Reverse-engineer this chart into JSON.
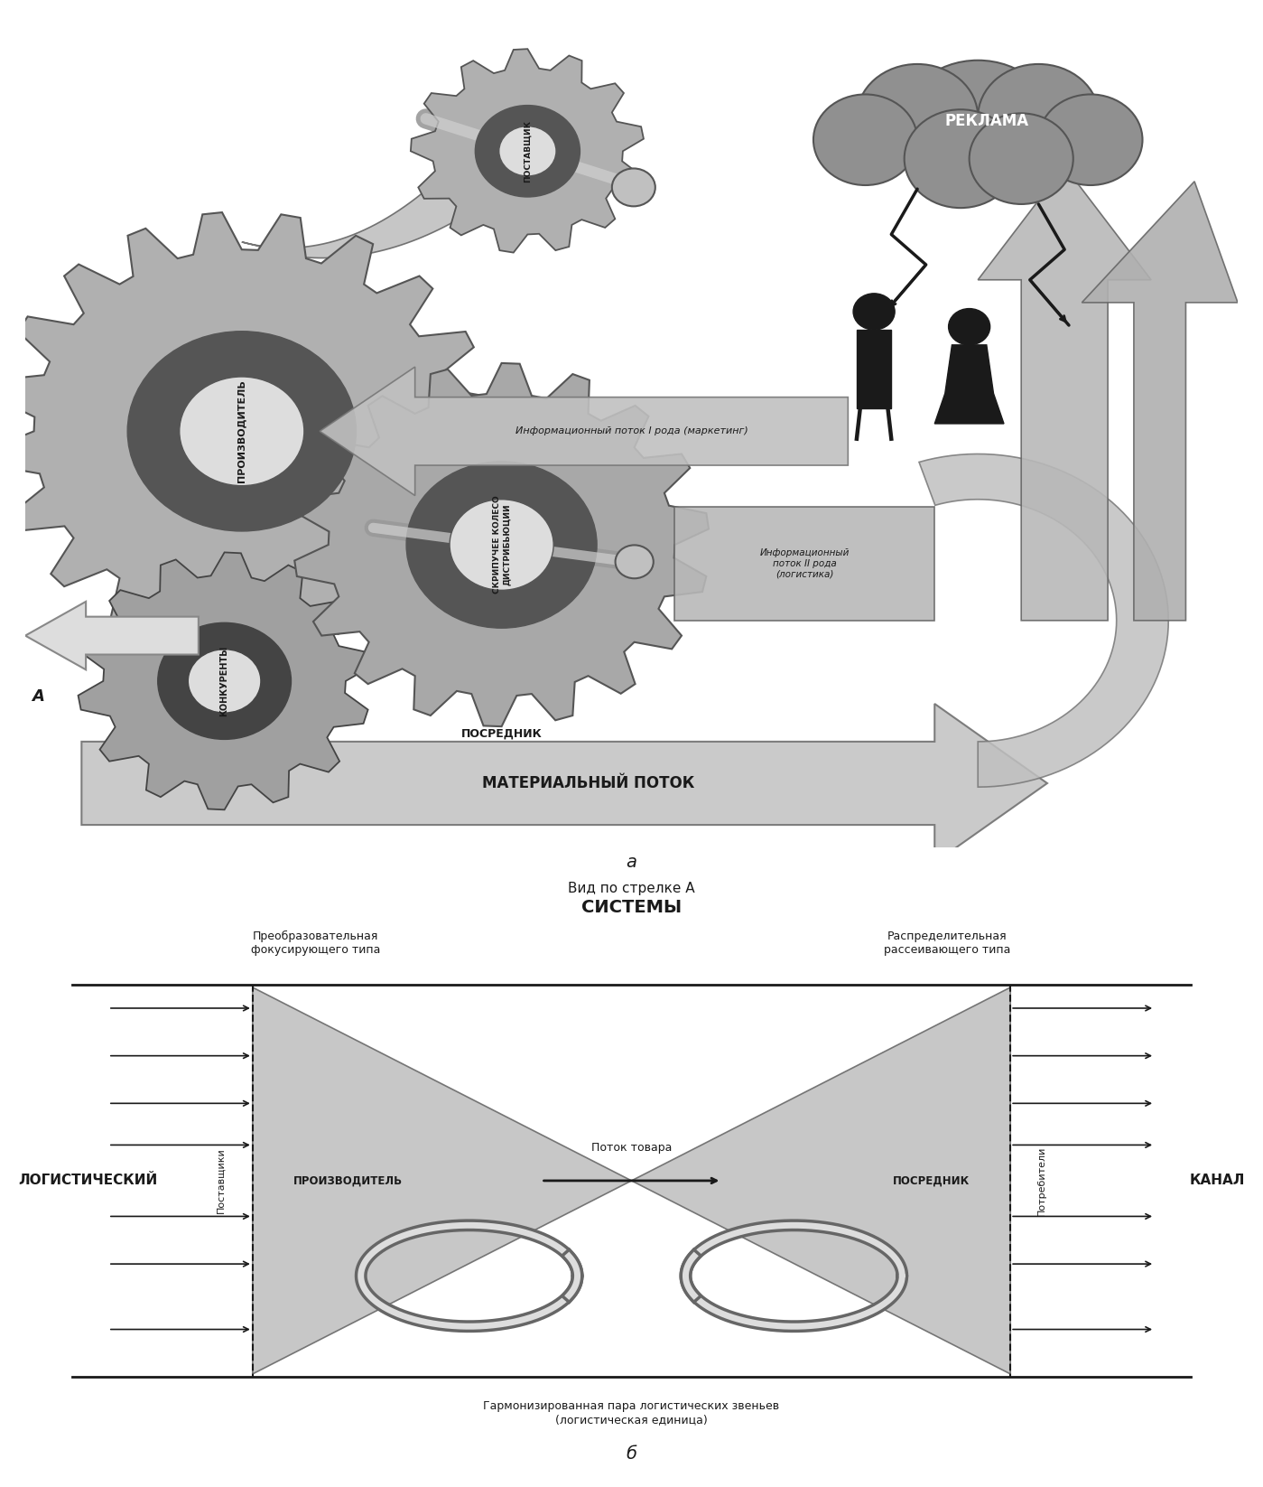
{
  "bg_color": "#ffffff",
  "dark": "#1a1a1a",
  "gear_face": "#aaaaaa",
  "gear_dark": "#555555",
  "gear_light": "#cccccc",
  "belt_color": "#888888",
  "arrow_fill": "#c0c0c0",
  "cloud_fill": "#909090",
  "info_arrow_fill": "#b8b8b8",
  "material_fill": "#c8c8c8",
  "info2_fill": "#999999",
  "part_a_label": "а",
  "part_b_label": "б",
  "view_label": "Вид по стрелке А",
  "reklama_text": "РЕКЛАМА",
  "material_flow": "МАТЕРИАЛЬНЫЙ ПОТОК",
  "info_flow1": "Информационный поток I рода (маркетинг)",
  "info_flow2": "Информационный\nпоток II рода\n(логистика)",
  "producer_label": "ПРОИЗВОДИТЕЛЬ",
  "competitors_label": "КОНКУРЕНТЫ",
  "supplier_label": "ПОСТАВЩИК",
  "intermediary_label": "ПОСРЕДНИК",
  "gear_label": "СКРИПУЧЕЕ КОЛЕСО\nДИСТРИБЬЮЦИИ",
  "systems_title": "СИСТЕМЫ",
  "transform_label": "Преобразовательная\nфокусирующего типа",
  "distrib_label": "Распределительная\nрассеивающего типа",
  "logistic_left": "ЛОГИСТИЧЕСКИЙ",
  "logistic_right": "КАНАЛ",
  "suppliers_vert": "Поставщики",
  "consumers_vert": "Потребители",
  "producer_b": "ПРОИЗВОДИТЕЛЬ",
  "intermediary_b": "ПОСРЕДНИК",
  "flow_goods": "Поток товара",
  "harmonized_pair": "Гармонизированная пара логистических звеньев\n(логистическая единица)"
}
